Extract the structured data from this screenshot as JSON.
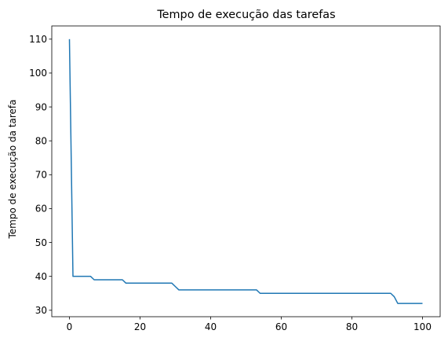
{
  "chart_data": {
    "type": "line",
    "title": "Tempo de execução das tarefas",
    "xlabel": "",
    "ylabel": "Tempo de execução da tarefa",
    "xlim": [
      -5,
      105
    ],
    "ylim": [
      28.1,
      113.9
    ],
    "xticks": [
      0,
      20,
      40,
      60,
      80,
      100
    ],
    "yticks": [
      30,
      40,
      50,
      60,
      70,
      80,
      90,
      100,
      110
    ],
    "grid": false,
    "line_color": "#1f77b4",
    "series": [
      {
        "x": [
          0,
          1,
          2,
          3,
          4,
          5,
          6,
          7,
          8,
          9,
          10,
          11,
          12,
          13,
          14,
          15,
          16,
          17,
          18,
          19,
          20,
          21,
          22,
          23,
          24,
          25,
          26,
          27,
          28,
          29,
          30,
          31,
          32,
          33,
          34,
          35,
          36,
          37,
          38,
          39,
          40,
          41,
          42,
          43,
          44,
          45,
          46,
          47,
          48,
          49,
          50,
          51,
          52,
          53,
          54,
          55,
          56,
          57,
          58,
          59,
          60,
          61,
          62,
          63,
          64,
          65,
          66,
          67,
          68,
          69,
          70,
          71,
          72,
          73,
          74,
          75,
          76,
          77,
          78,
          79,
          80,
          81,
          82,
          83,
          84,
          85,
          86,
          87,
          88,
          89,
          90,
          91,
          92,
          93,
          94,
          95,
          96,
          97,
          98,
          99,
          100
        ],
        "values": [
          110,
          40,
          40,
          40,
          40,
          40,
          40,
          39,
          39,
          39,
          39,
          39,
          39,
          39,
          39,
          39,
          38,
          38,
          38,
          38,
          38,
          38,
          38,
          38,
          38,
          38,
          38,
          38,
          38,
          38,
          37,
          36,
          36,
          36,
          36,
          36,
          36,
          36,
          36,
          36,
          36,
          36,
          36,
          36,
          36,
          36,
          36,
          36,
          36,
          36,
          36,
          36,
          36,
          36,
          35,
          35,
          35,
          35,
          35,
          35,
          35,
          35,
          35,
          35,
          35,
          35,
          35,
          35,
          35,
          35,
          35,
          35,
          35,
          35,
          35,
          35,
          35,
          35,
          35,
          35,
          35,
          35,
          35,
          35,
          35,
          35,
          35,
          35,
          35,
          35,
          35,
          35,
          34,
          32,
          32,
          32,
          32,
          32,
          32,
          32,
          32
        ]
      }
    ]
  }
}
